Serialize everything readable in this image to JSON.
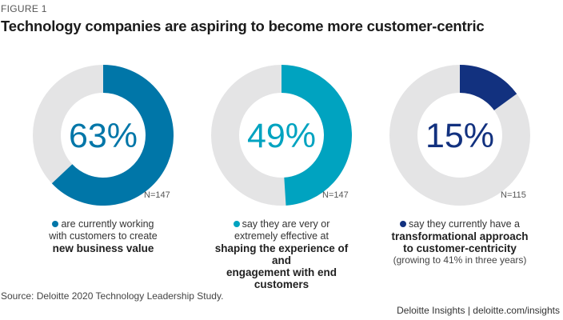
{
  "figure_label": "FIGURE 1",
  "title": "Technology companies are aspiring to become more customer-centric",
  "colors": {
    "track": "#e4e4e5",
    "donut1": "#0076a8",
    "donut2": "#00a3c0",
    "donut3": "#12317f"
  },
  "chart_data": {
    "type": "donut",
    "title": "Technology companies are aspiring to become more customer-centric",
    "series": [
      {
        "value": 63,
        "label": "63%",
        "n": "N=147",
        "color": "#0076a8",
        "caption_lines": [
          "are currently working",
          "with customers to create"
        ],
        "caption_bold_lines": [
          "new business value"
        ],
        "caption_small": ""
      },
      {
        "value": 49,
        "label": "49%",
        "n": "N=147",
        "color": "#00a3c0",
        "caption_lines": [
          "say they are very or",
          "extremely effective at"
        ],
        "caption_bold_lines": [
          "shaping the experience of and",
          "engagement with end customers"
        ],
        "caption_small": ""
      },
      {
        "value": 15,
        "label": "15%",
        "n": "N=115",
        "color": "#12317f",
        "caption_lines": [
          "say they currently have a"
        ],
        "caption_bold_lines": [
          "transformational approach",
          "to customer-centricity"
        ],
        "caption_small": "(growing to 41% in three years)"
      }
    ]
  },
  "source": "Source: Deloitte 2020 Technology Leadership Study.",
  "footer": "Deloitte Insights | deloitte.com/insights"
}
